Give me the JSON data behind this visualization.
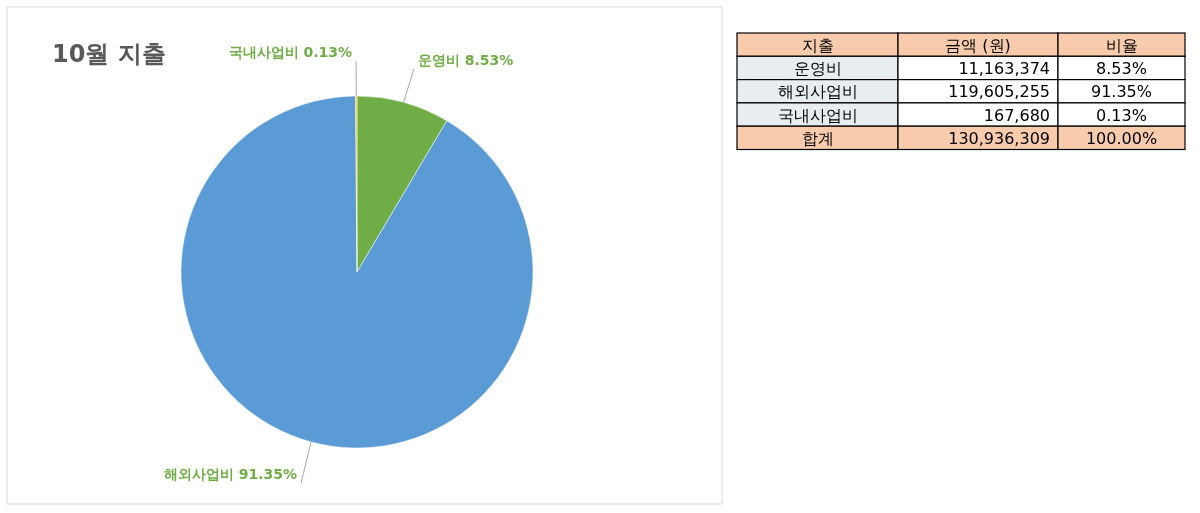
{
  "chart_data": [
    {
      "type": "pie",
      "title": "10월 지출",
      "categories": [
        "운영비",
        "해외사업비",
        "국내사업비"
      ],
      "values": [
        8.53,
        91.35,
        0.13
      ],
      "colors": [
        "#70ad47",
        "#5b9bd5",
        "#ffc000"
      ],
      "value_labels": [
        "8.53%",
        "91.35%",
        "0.13%"
      ]
    },
    {
      "type": "other",
      "xlabel": "지출",
      "categories": [
        "운영비",
        "해외사업비",
        "국내사업비",
        "합계"
      ],
      "series": [
        {
          "name": "금액 (원)",
          "colors": [
            "#ffffff",
            "#ffffff",
            "#ffffff",
            "#f8cbad"
          ],
          "values": [
            11163374,
            119605255,
            167680,
            130936309
          ],
          "value_labels": [
            "11,163,374",
            "119,605,255",
            "167,680",
            "130,936,309"
          ]
        },
        {
          "name": "비율",
          "colors": [
            "#ffffff",
            "#ffffff",
            "#ffffff",
            "#f8cbad"
          ],
          "values": [
            8.53,
            91.35,
            0.13,
            100.0
          ],
          "value_labels": [
            "8.53%",
            "91.35%",
            "0.13%",
            "100.00%"
          ]
        }
      ]
    }
  ]
}
